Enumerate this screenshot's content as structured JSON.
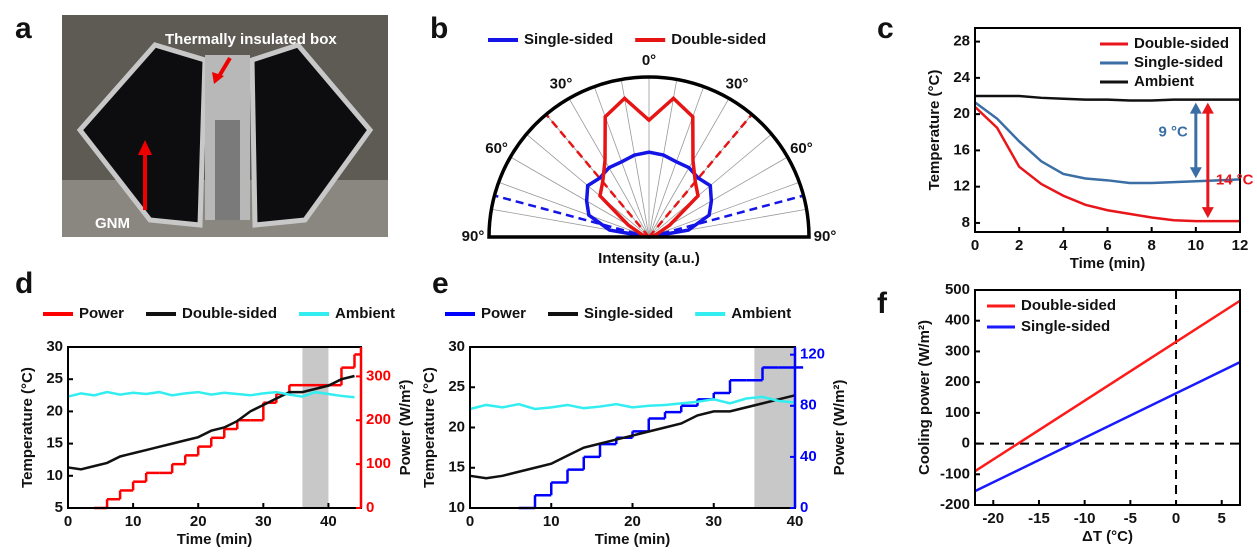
{
  "chart_data": [
    {
      "type": "image",
      "panel_label": "a",
      "annotations": [
        "Thermally insulated box",
        "GNM"
      ]
    },
    {
      "type": "polar",
      "panel_label": "b",
      "xlabel": "Intensity (a.u.)",
      "legend_position": "top",
      "rlim": [
        0,
        1
      ],
      "theta": [
        -90,
        -80,
        -70,
        -60,
        -50,
        -40,
        -30,
        -20,
        -10,
        0,
        10,
        20,
        30,
        40,
        50,
        60,
        70,
        80,
        90
      ],
      "thetaticks": [
        {
          "value": -90,
          "label": "90°"
        },
        {
          "value": -60,
          "label": "60°"
        },
        {
          "value": -30,
          "label": "30°"
        },
        {
          "value": 0,
          "label": "0°"
        },
        {
          "value": 30,
          "label": "30°"
        },
        {
          "value": 60,
          "label": "60°"
        },
        {
          "value": 90,
          "label": "90°"
        }
      ],
      "series": [
        {
          "name": "Single-sided",
          "color": "#1414e6",
          "cutoff_angles": [
            -75,
            75
          ],
          "values": [
            0,
            0.25,
            0.4,
            0.45,
            0.5,
            0.48,
            0.5,
            0.5,
            0.52,
            0.53,
            0.52,
            0.5,
            0.5,
            0.48,
            0.5,
            0.45,
            0.4,
            0.25,
            0
          ]
        },
        {
          "name": "Double-sided",
          "color": "#e61414",
          "cutoff_angles": [
            -40,
            40
          ],
          "values": [
            0,
            0.02,
            0.05,
            0.15,
            0.4,
            0.45,
            0.55,
            0.8,
            0.88,
            0.73,
            0.88,
            0.8,
            0.55,
            0.45,
            0.4,
            0.15,
            0.05,
            0.02,
            0
          ]
        }
      ]
    },
    {
      "type": "line",
      "panel_label": "c",
      "xlabel": "Time (min)",
      "ylabel": "Temperature (°C)",
      "legend_position": "upper right",
      "xlim": [
        0,
        12
      ],
      "xticks": [
        0,
        2,
        4,
        6,
        8,
        10,
        12
      ],
      "ylim": [
        7,
        29.5
      ],
      "yticks": [
        8,
        12,
        16,
        20,
        24,
        28
      ],
      "x": [
        0,
        1,
        2,
        3,
        4,
        5,
        6,
        7,
        8,
        9,
        10,
        11,
        12
      ],
      "series": [
        {
          "name": "Double-sided",
          "color": "#e8161b",
          "values": [
            20.8,
            18.5,
            14.2,
            12.3,
            11,
            10,
            9.4,
            9,
            8.6,
            8.3,
            8.2,
            8.2,
            8.2
          ]
        },
        {
          "name": "Single-sided",
          "color": "#3a6ea5",
          "values": [
            21.3,
            19.5,
            17,
            14.8,
            13.4,
            12.9,
            12.7,
            12.4,
            12.4,
            12.5,
            12.6,
            12.7,
            12.8
          ]
        },
        {
          "name": "Ambient",
          "color": "#111111",
          "values": [
            22,
            22,
            22,
            21.8,
            21.7,
            21.6,
            21.6,
            21.5,
            21.5,
            21.6,
            21.6,
            21.6,
            21.6
          ]
        }
      ],
      "annotations": [
        {
          "text": "9 °C",
          "color": "#3a6ea5"
        },
        {
          "text": "14 °C",
          "color": "#e8161b"
        }
      ]
    },
    {
      "type": "line",
      "panel_label": "d",
      "xlabel": "Time (min)",
      "ylabel": "Temperature (°C)",
      "y2label": "Power (W/m²)",
      "legend_position": "top",
      "xlim": [
        0,
        45
      ],
      "xticks": [
        0,
        10,
        20,
        30,
        40
      ],
      "ylim": [
        5,
        30
      ],
      "yticks": [
        5,
        10,
        15,
        20,
        25,
        30
      ],
      "y2lim": [
        0,
        367
      ],
      "y2ticks": [
        0,
        100,
        200,
        300
      ],
      "shade": [
        36,
        40
      ],
      "x": [
        0,
        2,
        4,
        6,
        8,
        10,
        12,
        14,
        16,
        18,
        20,
        22,
        24,
        26,
        28,
        30,
        32,
        34,
        36,
        38,
        40,
        42,
        44
      ],
      "series": [
        {
          "name": "Power",
          "color": "#ff0000",
          "axis": "y2",
          "step": true,
          "values": [
            null,
            null,
            0,
            20,
            40,
            60,
            80,
            80,
            100,
            120,
            140,
            160,
            180,
            200,
            200,
            240,
            260,
            280,
            280,
            280,
            280,
            320,
            350
          ]
        },
        {
          "name": "Double-sided",
          "color": "#111111",
          "values": [
            11.3,
            11,
            11.5,
            12,
            13,
            13.5,
            14,
            14.5,
            15,
            15.5,
            16,
            17,
            17.5,
            18.5,
            20,
            21,
            22,
            23,
            23,
            23.5,
            24,
            25,
            25.5
          ]
        },
        {
          "name": "Ambient",
          "color": "#33eef0",
          "values": [
            22.3,
            22.8,
            22.5,
            23,
            22.6,
            22.9,
            22.7,
            23,
            22.5,
            22.8,
            23,
            22.6,
            22.9,
            22.7,
            22.5,
            22.8,
            23,
            22.6,
            22.3,
            23,
            22.7,
            22.4,
            22.2
          ]
        }
      ]
    },
    {
      "type": "line",
      "panel_label": "e",
      "xlabel": "Time (min)",
      "ylabel": "Temperature (°C)",
      "y2label": "Power (W/m²)",
      "legend_position": "top",
      "xlim": [
        0,
        40
      ],
      "xticks": [
        0,
        10,
        20,
        30,
        40
      ],
      "ylim": [
        10,
        30
      ],
      "yticks": [
        10,
        15,
        20,
        25,
        30
      ],
      "y2lim": [
        0,
        126
      ],
      "y2ticks": [
        0,
        40,
        80,
        120
      ],
      "shade": [
        35,
        40
      ],
      "x": [
        0,
        2,
        4,
        6,
        8,
        10,
        12,
        14,
        16,
        18,
        20,
        22,
        24,
        26,
        28,
        30,
        32,
        34,
        36,
        38,
        40
      ],
      "series": [
        {
          "name": "Power",
          "color": "#0000ff",
          "axis": "y2",
          "step": true,
          "values": [
            null,
            null,
            null,
            0,
            10,
            20,
            30,
            40,
            50,
            55,
            60,
            70,
            75,
            80,
            85,
            90,
            100,
            100,
            110,
            110,
            110
          ]
        },
        {
          "name": "Single-sided",
          "color": "#111111",
          "values": [
            14,
            13.7,
            14,
            14.5,
            15,
            15.5,
            16.5,
            17.5,
            18,
            18.5,
            19,
            19.5,
            20,
            20.5,
            21.5,
            22,
            22,
            22.5,
            23,
            23.5,
            24
          ]
        },
        {
          "name": "Ambient",
          "color": "#33eef0",
          "values": [
            22.3,
            22.8,
            22.5,
            22.9,
            22.3,
            22.5,
            22.8,
            22.4,
            22.6,
            22.9,
            22.5,
            22.7,
            22.8,
            23,
            23.2,
            23.5,
            23,
            23.6,
            23.8,
            23.3,
            23.1
          ]
        }
      ]
    },
    {
      "type": "line",
      "panel_label": "f",
      "xlabel": "ΔT (°C)",
      "ylabel": "Cooling power (W/m²)",
      "legend_position": "upper left",
      "xlim": [
        -22,
        7
      ],
      "xticks": [
        -20,
        -15,
        -10,
        -5,
        0,
        5
      ],
      "ylim": [
        -200,
        500
      ],
      "yticks": [
        -200,
        -100,
        0,
        100,
        200,
        300,
        400,
        500
      ],
      "hlines": [
        0
      ],
      "vlines": [
        0
      ],
      "x": [
        -22,
        7
      ],
      "series": [
        {
          "name": "Double-sided",
          "color": "#ff1a1a",
          "values": [
            -90,
            465
          ]
        },
        {
          "name": "Single-sided",
          "color": "#1a1aff",
          "values": [
            -155,
            265
          ]
        }
      ]
    }
  ]
}
